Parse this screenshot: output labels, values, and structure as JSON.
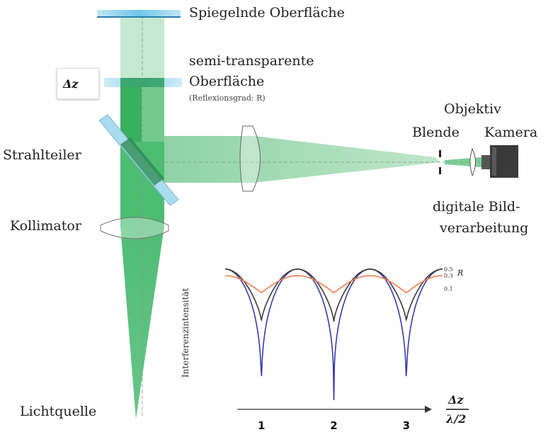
{
  "labels": {
    "mirror": "Spiegelnde Oberfläche",
    "semi_line1": "semi-transparente",
    "semi_line2": "Oberfläche",
    "reflectance": "(Reflexionsgrad: R)",
    "objective": "Objektiv",
    "aperture": "Blende",
    "camera": "Kamera",
    "beamsplitter": "Strahlteiler",
    "collimator": "Kollimator",
    "processing_line1": "digitale Bild-",
    "processing_line2": "verarbeitung",
    "light_source": "Lichtquelle",
    "delta_z": "Δz"
  },
  "chart_data": {
    "type": "line",
    "ylabel": "Interferenzintensität",
    "xlabel_num": "Δz",
    "xlabel_den": "λ/2",
    "x_ticks": [
      "1",
      "2",
      "3"
    ],
    "legend_title": "R",
    "series": [
      {
        "name": "0.5",
        "color": "#3a3aa8",
        "max": 1.0,
        "min": 0.0
      },
      {
        "name": "0.3",
        "color": "#3a3a3a",
        "max": 1.0,
        "min": 0.6
      },
      {
        "name": "0.1",
        "color": "#f07c4a",
        "max": 0.95,
        "min": 0.82
      }
    ],
    "period": 1,
    "x_range": [
      0.5,
      3.5
    ],
    "colors": {
      "beam_light": "#c9ead2",
      "beam_mid": "#8fd3a4",
      "beam_dark": "#2fae57"
    }
  }
}
